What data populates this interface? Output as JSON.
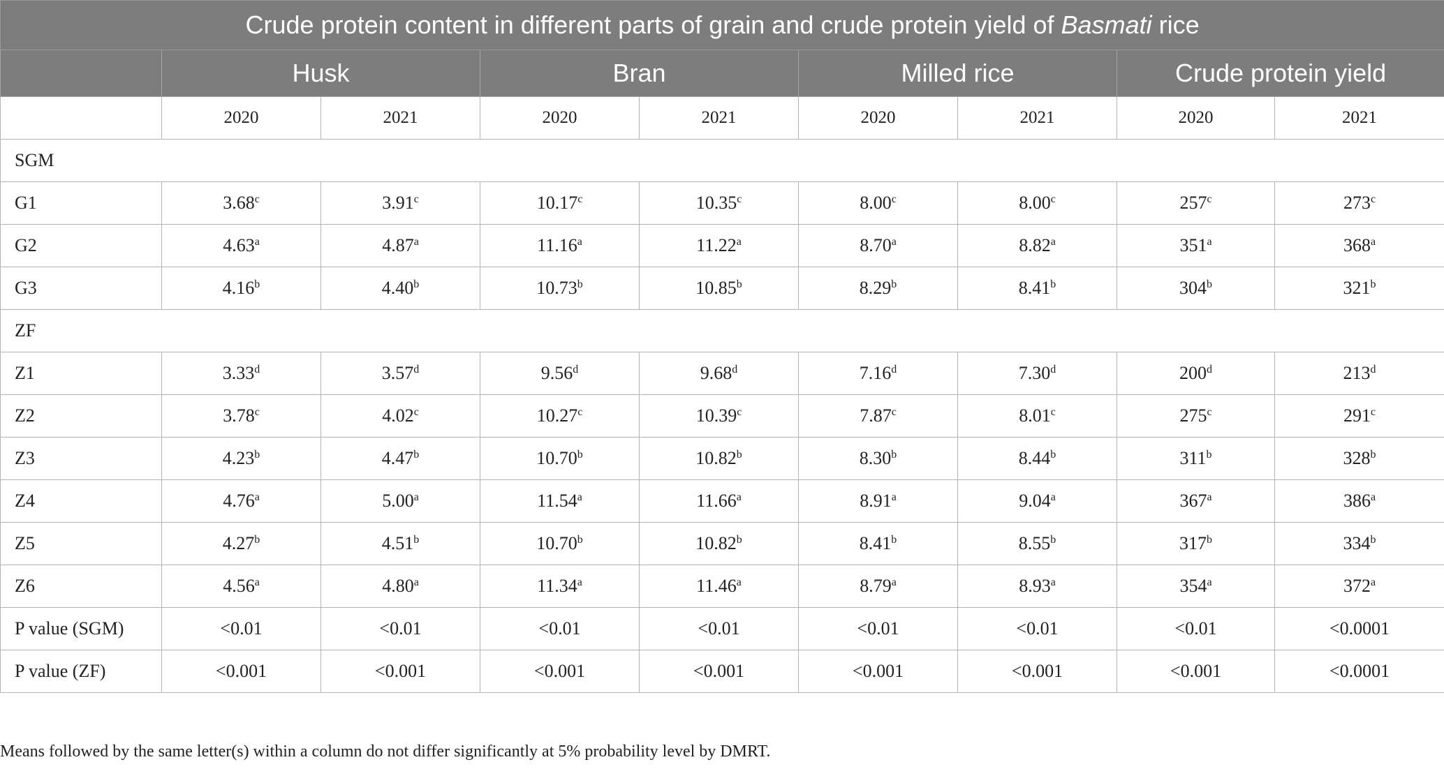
{
  "table": {
    "title_prefix": "Crude protein content in different parts of grain and crude protein yield of ",
    "title_italic": "Basmati",
    "title_suffix": " rice",
    "groups": [
      "Husk",
      "Bran",
      "Milled rice",
      "Crude protein yield"
    ],
    "years": [
      "2020",
      "2021",
      "2020",
      "2021",
      "2020",
      "2021",
      "2020",
      "2021"
    ],
    "sections": [
      {
        "label": "SGM",
        "rows": [
          {
            "label": "G1",
            "cells": [
              [
                "3.68",
                "c"
              ],
              [
                "3.91",
                "c"
              ],
              [
                "10.17",
                "c"
              ],
              [
                "10.35",
                "c"
              ],
              [
                "8.00",
                "c"
              ],
              [
                "8.00",
                "c"
              ],
              [
                "257",
                "c"
              ],
              [
                "273",
                "c"
              ]
            ]
          },
          {
            "label": "G2",
            "cells": [
              [
                "4.63",
                "a"
              ],
              [
                "4.87",
                "a"
              ],
              [
                "11.16",
                "a"
              ],
              [
                "11.22",
                "a"
              ],
              [
                "8.70",
                "a"
              ],
              [
                "8.82",
                "a"
              ],
              [
                "351",
                "a"
              ],
              [
                "368",
                "a"
              ]
            ]
          },
          {
            "label": "G3",
            "cells": [
              [
                "4.16",
                "b"
              ],
              [
                "4.40",
                "b"
              ],
              [
                "10.73",
                "b"
              ],
              [
                "10.85",
                "b"
              ],
              [
                "8.29",
                "b"
              ],
              [
                "8.41",
                "b"
              ],
              [
                "304",
                "b"
              ],
              [
                "321",
                "b"
              ]
            ]
          }
        ]
      },
      {
        "label": "ZF",
        "rows": [
          {
            "label": "Z1",
            "cells": [
              [
                "3.33",
                "d"
              ],
              [
                "3.57",
                "d"
              ],
              [
                "9.56",
                "d"
              ],
              [
                "9.68",
                "d"
              ],
              [
                "7.16",
                "d"
              ],
              [
                "7.30",
                "d"
              ],
              [
                "200",
                "d"
              ],
              [
                "213",
                "d"
              ]
            ]
          },
          {
            "label": "Z2",
            "cells": [
              [
                "3.78",
                "c"
              ],
              [
                "4.02",
                "c"
              ],
              [
                "10.27",
                "c"
              ],
              [
                "10.39",
                "c"
              ],
              [
                "7.87",
                "c"
              ],
              [
                "8.01",
                "c"
              ],
              [
                "275",
                "c"
              ],
              [
                "291",
                "c"
              ]
            ]
          },
          {
            "label": "Z3",
            "cells": [
              [
                "4.23",
                "b"
              ],
              [
                "4.47",
                "b"
              ],
              [
                "10.70",
                "b"
              ],
              [
                "10.82",
                "b"
              ],
              [
                "8.30",
                "b"
              ],
              [
                "8.44",
                "b"
              ],
              [
                "311",
                "b"
              ],
              [
                "328",
                "b"
              ]
            ]
          },
          {
            "label": "Z4",
            "cells": [
              [
                "4.76",
                "a"
              ],
              [
                "5.00",
                "a"
              ],
              [
                "11.54",
                "a"
              ],
              [
                "11.66",
                "a"
              ],
              [
                "8.91",
                "a"
              ],
              [
                "9.04",
                "a"
              ],
              [
                "367",
                "a"
              ],
              [
                "386",
                "a"
              ]
            ]
          },
          {
            "label": "Z5",
            "cells": [
              [
                "4.27",
                "b"
              ],
              [
                "4.51",
                "b"
              ],
              [
                "10.70",
                "b"
              ],
              [
                "10.82",
                "b"
              ],
              [
                "8.41",
                "b"
              ],
              [
                "8.55",
                "b"
              ],
              [
                "317",
                "b"
              ],
              [
                "334",
                "b"
              ]
            ]
          },
          {
            "label": "Z6",
            "cells": [
              [
                "4.56",
                "a"
              ],
              [
                "4.80",
                "a"
              ],
              [
                "11.34",
                "a"
              ],
              [
                "11.46",
                "a"
              ],
              [
                "8.79",
                "a"
              ],
              [
                "8.93",
                "a"
              ],
              [
                "354",
                "a"
              ],
              [
                "372",
                "a"
              ]
            ]
          }
        ]
      }
    ],
    "pvalue_rows": [
      {
        "label": "P value (SGM)",
        "cells": [
          "<0.01",
          "<0.01",
          "<0.01",
          "<0.01",
          "<0.01",
          "<0.01",
          "<0.01",
          "<0.0001"
        ]
      },
      {
        "label": "P value (ZF)",
        "cells": [
          "<0.001",
          "<0.001",
          "<0.001",
          "<0.001",
          "<0.001",
          "<0.001",
          "<0.001",
          "<0.0001"
        ]
      }
    ]
  },
  "footnote": "Means followed by the same letter(s) within a column do not differ significantly at 5% probability level by DMRT."
}
